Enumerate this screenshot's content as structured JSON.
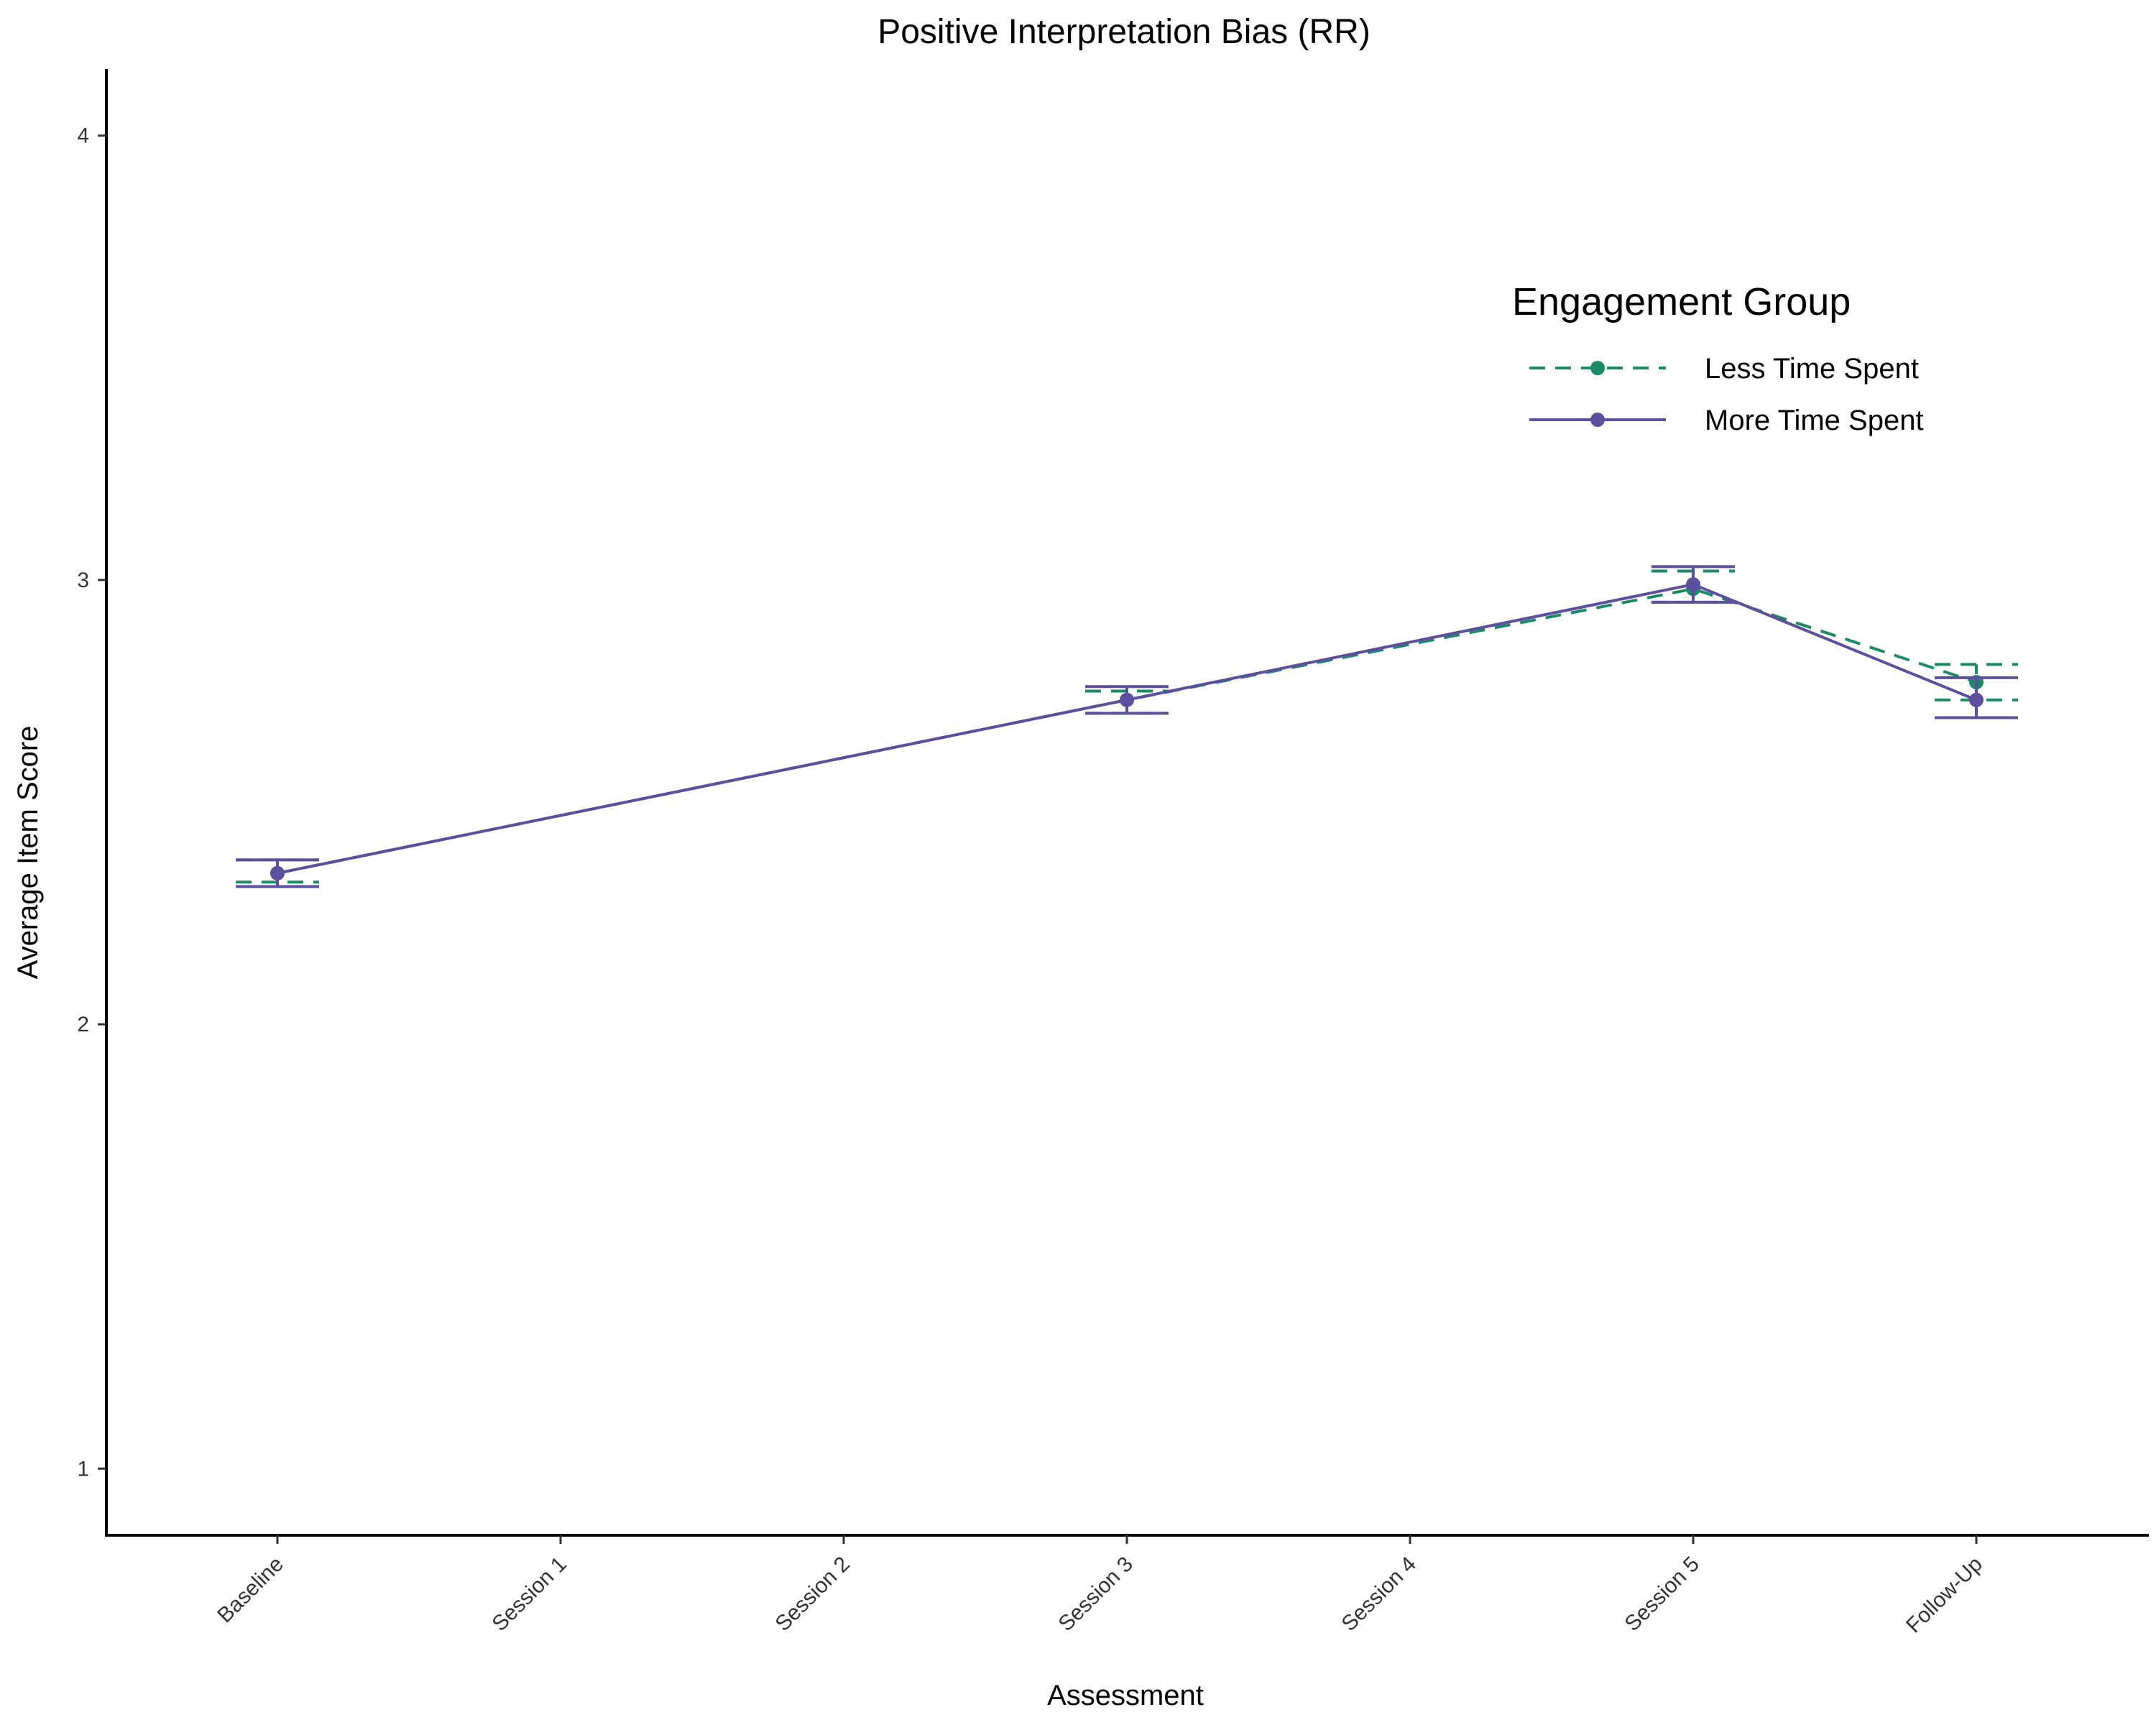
{
  "chart_data": {
    "type": "line",
    "title": "Positive Interpretation Bias (RR)",
    "xlabel": "Assessment",
    "ylabel": "Average Item Score",
    "categories": [
      "Baseline",
      "Session 1",
      "Session 2",
      "Session 3",
      "Session 4",
      "Session 5",
      "Follow-Up"
    ],
    "ylim": [
      0.85,
      4.15
    ],
    "yticks": [
      "1",
      "2",
      "3",
      "4"
    ],
    "grid": false,
    "legend": {
      "title": "Engagement Group",
      "placement": "top-right"
    },
    "series": [
      {
        "name": "Less Time Spent",
        "color": "#1b8a66",
        "line_style": "dashed",
        "points": [
          {
            "category": "Baseline",
            "value": 2.34,
            "lower": 2.32,
            "upper": 2.37
          },
          {
            "category": "Session 3",
            "value": 2.73,
            "lower": 2.7,
            "upper": 2.75
          },
          {
            "category": "Session 5",
            "value": 2.98,
            "lower": 2.95,
            "upper": 3.02
          },
          {
            "category": "Follow-Up",
            "value": 2.77,
            "lower": 2.73,
            "upper": 2.81
          }
        ]
      },
      {
        "name": "More Time Spent",
        "color": "#5b4f9e",
        "line_style": "solid",
        "points": [
          {
            "category": "Baseline",
            "value": 2.34,
            "lower": 2.31,
            "upper": 2.37
          },
          {
            "category": "Session 3",
            "value": 2.73,
            "lower": 2.7,
            "upper": 2.76
          },
          {
            "category": "Session 5",
            "value": 2.99,
            "lower": 2.95,
            "upper": 3.03
          },
          {
            "category": "Follow-Up",
            "value": 2.73,
            "lower": 2.69,
            "upper": 2.78
          }
        ]
      }
    ]
  }
}
